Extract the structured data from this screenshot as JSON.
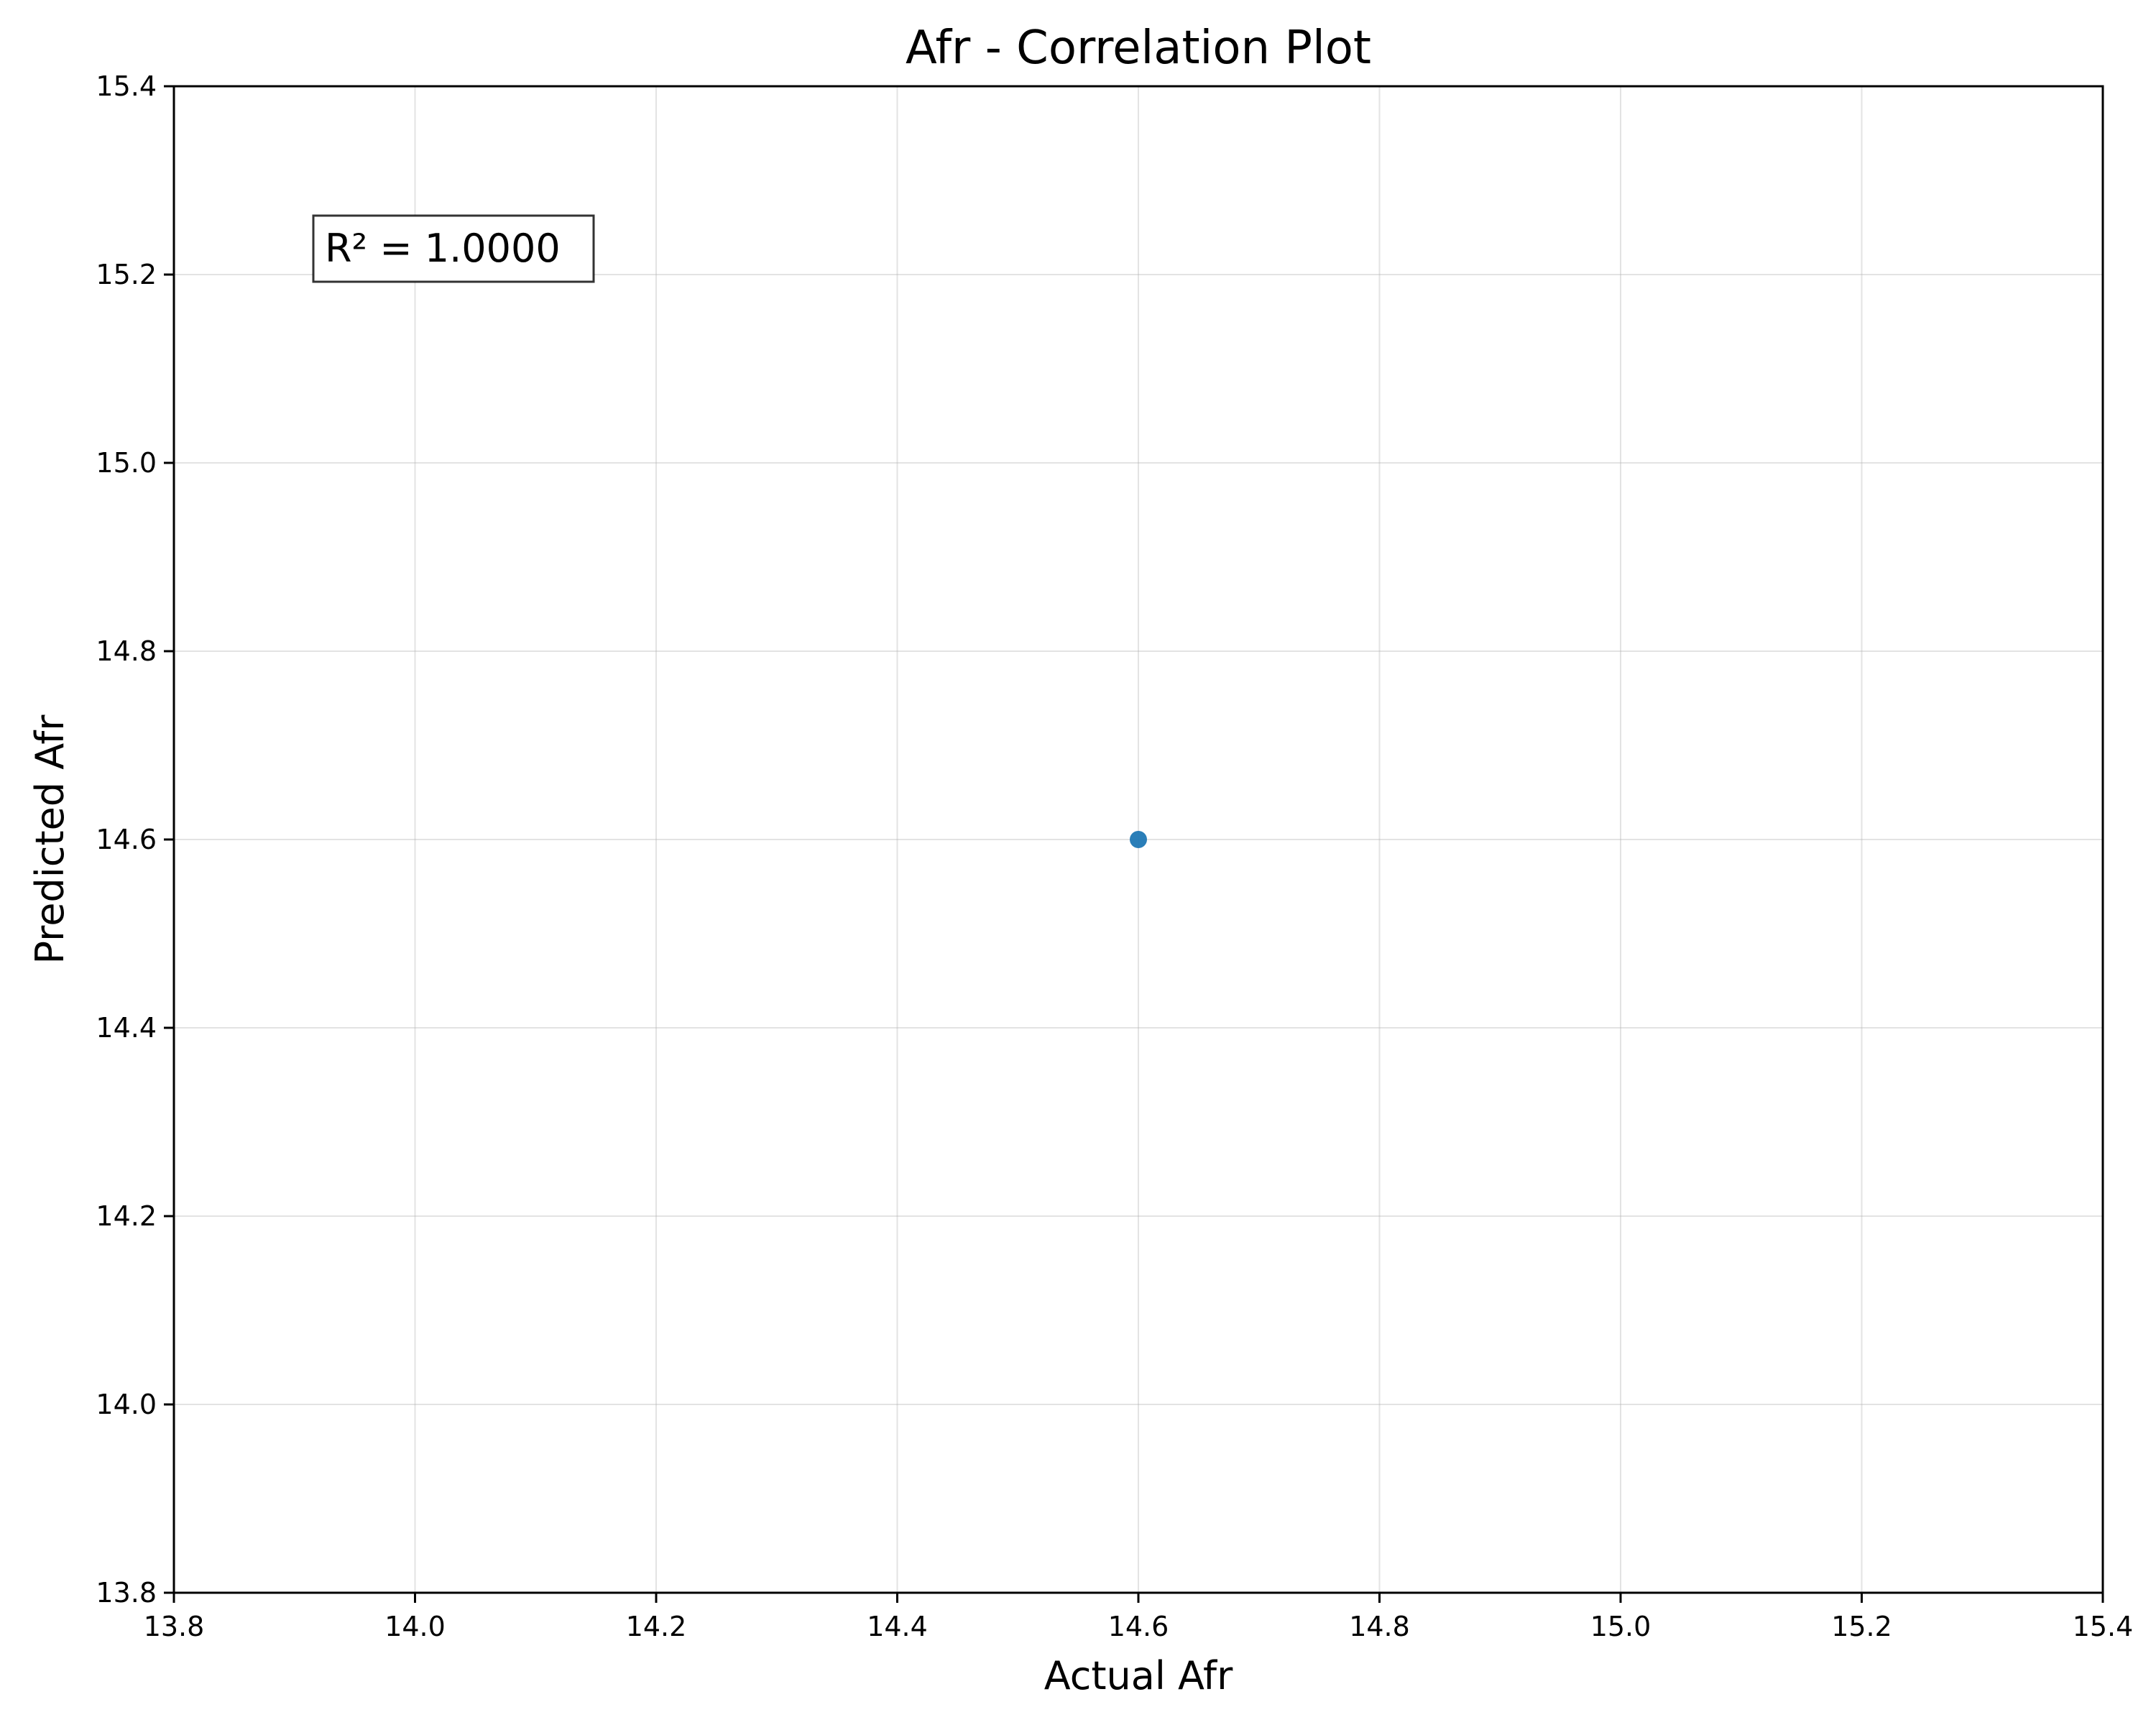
{
  "chart_data": {
    "type": "scatter",
    "title": "Afr - Correlation Plot",
    "xlabel": "Actual Afr",
    "ylabel": "Predicted Afr",
    "xlim": [
      13.8,
      15.4
    ],
    "ylim": [
      13.8,
      15.4
    ],
    "x_ticks": [
      "13.8",
      "14.0",
      "14.2",
      "14.4",
      "14.6",
      "14.8",
      "15.0",
      "15.2",
      "15.4"
    ],
    "y_ticks": [
      "13.8",
      "14.0",
      "14.2",
      "14.4",
      "14.6",
      "14.8",
      "15.0",
      "15.2",
      "15.4"
    ],
    "grid": true,
    "series": [
      {
        "points": [
          {
            "x": 14.6,
            "y": 14.6
          }
        ],
        "color": "#1f77b4"
      }
    ],
    "annotation": {
      "text": "R² = 1.0000",
      "position": "top-left"
    }
  }
}
